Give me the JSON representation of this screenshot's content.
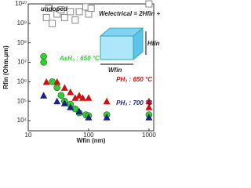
{
  "chart_data": {
    "type": "scatter",
    "log_x": true,
    "log_y": true,
    "x_label": "Wfin (nm)",
    "y_label": "Rfin (Ohm.μm)",
    "xlim": [
      10,
      1200
    ],
    "ylim": [
      3000,
      10000000000
    ],
    "xticks": [
      10,
      100,
      1000
    ],
    "yticks": [
      {
        "value": 10000,
        "label": "10⁴"
      },
      {
        "value": 100000,
        "label": "10⁵"
      },
      {
        "value": 1000000,
        "label": "10⁶"
      },
      {
        "value": 10000000,
        "label": "10⁷"
      },
      {
        "value": 100000000,
        "label": "10⁸"
      },
      {
        "value": 1000000000,
        "label": "10⁹"
      },
      {
        "value": 10000000000,
        "label": "10¹⁰"
      }
    ],
    "formula": "Welectrical = 2Hfin + Wfin",
    "diagram_labels": [
      "Hfin",
      "Wfin"
    ],
    "series": [
      {
        "name": "undoped",
        "marker": "square",
        "color": "#888888",
        "x": [
          20,
          22,
          25,
          30,
          35,
          40,
          50,
          60,
          70,
          90,
          100,
          110,
          1000
        ],
        "values": [
          2000000000,
          6000000000,
          1000000000,
          3000000000,
          5000000000,
          2000000000,
          4000000000,
          1500000000,
          4000000000,
          7000000000,
          3000000000,
          6000000000,
          10000000000
        ]
      },
      {
        "name": "AsH₃ : 650 °C",
        "marker": "circle",
        "color": "#33cc33",
        "x": [
          18,
          18,
          25,
          30,
          35,
          40,
          50,
          60,
          70,
          90,
          100,
          200,
          1000
        ],
        "values": [
          20000000,
          10000000,
          1000000,
          500000,
          200000,
          100000,
          70000,
          40000,
          25000,
          20000,
          18000,
          20000,
          20000
        ]
      },
      {
        "name": "PH₃ : 650 °C",
        "marker": "triangle",
        "color": "#cc1111",
        "x": [
          20,
          30,
          40,
          50,
          60,
          70,
          80,
          100,
          200,
          1000,
          1000
        ],
        "values": [
          1000000,
          1000000,
          500000,
          300000,
          150000,
          200000,
          150000,
          150000,
          100000,
          100000,
          50000
        ]
      },
      {
        "name": "PH₃ : 700 °C",
        "marker": "triangle",
        "color": "#1a237e",
        "x": [
          18,
          30,
          40,
          50,
          70,
          100,
          200,
          1000
        ],
        "values": [
          200000,
          100000,
          80000,
          50000,
          30000,
          15000,
          15000,
          15000
        ]
      }
    ]
  }
}
